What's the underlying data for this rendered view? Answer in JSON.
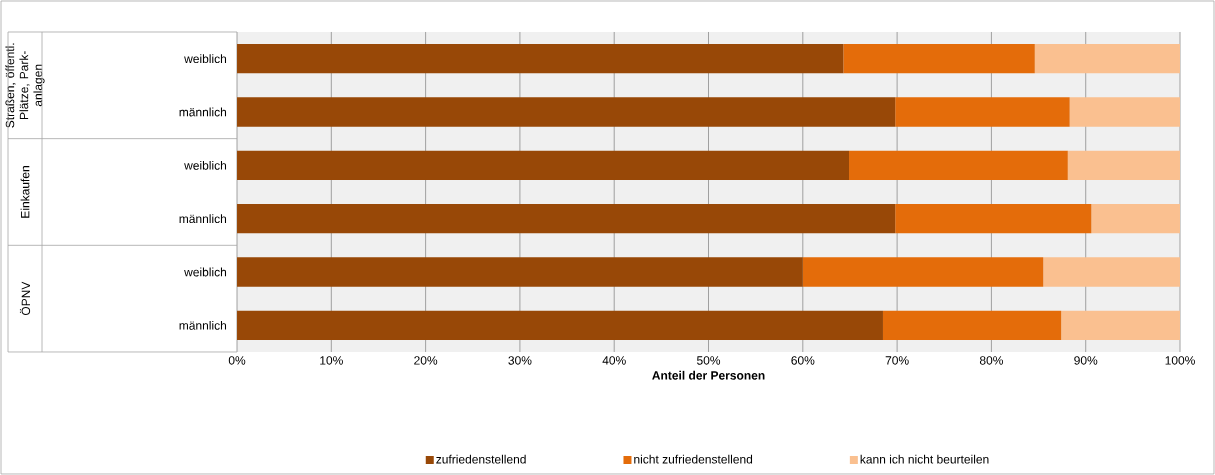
{
  "chart_data": {
    "type": "bar",
    "orientation": "horizontal",
    "stacked": true,
    "categories": [
      "weiblich",
      "männlich",
      "weiblich",
      "männlich",
      "weiblich",
      "männlich"
    ],
    "annotations": [
      "Straßen, öffentl. Plätze, Park-anlagen",
      "Einkaufen",
      "ÖPNV"
    ],
    "series": [
      {
        "name": "zufriedenstellend",
        "color": "#984807",
        "values": [
          64.3,
          69.8,
          64.9,
          69.8,
          60.0,
          68.5
        ]
      },
      {
        "name": "nicht zufriedenstellend",
        "color": "#e46c0a",
        "values": [
          20.3,
          18.5,
          23.2,
          20.8,
          25.5,
          18.9
        ]
      },
      {
        "name": "kann ich nicht beurteilen",
        "color": "#fac090",
        "values": [
          15.4,
          11.7,
          11.9,
          9.4,
          14.5,
          12.6
        ]
      }
    ],
    "xlabel": "Anteil der Personen",
    "xlim": [
      0,
      100
    ],
    "xticks": [
      {
        "value": 0,
        "label": "0%"
      },
      {
        "value": 10,
        "label": "10%"
      },
      {
        "value": 20,
        "label": "20%"
      },
      {
        "value": 30,
        "label": "30%"
      },
      {
        "value": 40,
        "label": "40%"
      },
      {
        "value": 50,
        "label": "50%"
      },
      {
        "value": 60,
        "label": "60%"
      },
      {
        "value": 70,
        "label": "70%"
      },
      {
        "value": 80,
        "label": "80%"
      },
      {
        "value": 90,
        "label": "90%"
      },
      {
        "value": 100,
        "label": "100%"
      }
    ],
    "grid": "x",
    "legend": "bottom"
  }
}
